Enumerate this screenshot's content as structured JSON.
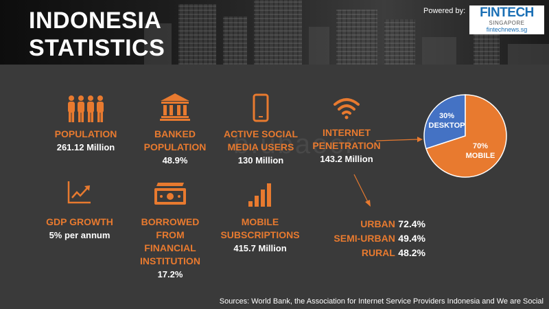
{
  "header": {
    "title_line1": "INDONESIA",
    "title_line2": "STATISTICS",
    "powered_by": "Powered by:",
    "logo": {
      "name": "FINTECH",
      "sub": "SINGAPORE",
      "url": "fintechnews.sg"
    }
  },
  "watermark": "b.ubaocr",
  "stats": [
    {
      "label": "POPULATION",
      "value": "261.12 Million",
      "icon": "people-icon"
    },
    {
      "label_line1": "BANKED",
      "label_line2": "POPULATION",
      "value": "48.9%",
      "icon": "bank-icon"
    },
    {
      "label_line1": "ACTIVE SOCIAL",
      "label_line2": "MEDIA USERS",
      "value": "130 Million",
      "icon": "smartphone-icon"
    },
    {
      "label_line1": "INTERNET",
      "label_line2": "PENETRATION",
      "value": "143.2 Million",
      "icon": "wifi-icon"
    },
    {
      "label": "GDP GROWTH",
      "value": "5% per annum",
      "icon": "growth-chart-icon"
    },
    {
      "label_line1": "BORROWED FROM",
      "label_line2": "FINANCIAL",
      "label_line3": "INSTITUTION",
      "value": "17.2%",
      "icon": "banknote-icon"
    },
    {
      "label_line1": "MOBILE",
      "label_line2": "SUBSCRIPTIONS",
      "value": "415.7 Million",
      "icon": "signal-bars-icon"
    }
  ],
  "internet_split": [
    {
      "category": "URBAN",
      "value": "72.4%"
    },
    {
      "category": "SEMI-URBAN",
      "value": "49.4%"
    },
    {
      "category": "RURAL",
      "value": "48.2%"
    }
  ],
  "chart_data": {
    "type": "pie",
    "categories": [
      "DESKTOP",
      "MOBILE"
    ],
    "values": [
      30,
      70
    ],
    "labels": [
      "30%",
      "70%"
    ],
    "colors": [
      "#4472c4",
      "#e87a2f"
    ]
  },
  "colors": {
    "accent": "#e87a2f",
    "background": "#3a3a3a",
    "desktop": "#4472c4"
  },
  "sources": "Sources: World Bank, the Association for Internet Service Providers Indonesia and We are Social"
}
